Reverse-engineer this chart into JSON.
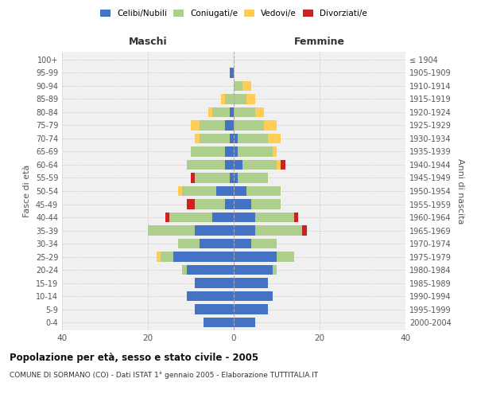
{
  "age_groups": [
    "0-4",
    "5-9",
    "10-14",
    "15-19",
    "20-24",
    "25-29",
    "30-34",
    "35-39",
    "40-44",
    "45-49",
    "50-54",
    "55-59",
    "60-64",
    "65-69",
    "70-74",
    "75-79",
    "80-84",
    "85-89",
    "90-94",
    "95-99",
    "100+"
  ],
  "birth_years": [
    "2000-2004",
    "1995-1999",
    "1990-1994",
    "1985-1989",
    "1980-1984",
    "1975-1979",
    "1970-1974",
    "1965-1969",
    "1960-1964",
    "1955-1959",
    "1950-1954",
    "1945-1949",
    "1940-1944",
    "1935-1939",
    "1930-1934",
    "1925-1929",
    "1920-1924",
    "1915-1919",
    "1910-1914",
    "1905-1909",
    "≤ 1904"
  ],
  "males": {
    "celibi": [
      7,
      9,
      11,
      9,
      11,
      14,
      8,
      9,
      5,
      2,
      4,
      1,
      2,
      2,
      1,
      2,
      1,
      0,
      0,
      1,
      0
    ],
    "coniugati": [
      0,
      0,
      0,
      0,
      1,
      3,
      5,
      11,
      10,
      7,
      8,
      8,
      9,
      8,
      7,
      6,
      4,
      2,
      0,
      0,
      0
    ],
    "vedovi": [
      0,
      0,
      0,
      0,
      0,
      1,
      0,
      0,
      0,
      0,
      1,
      0,
      0,
      0,
      1,
      2,
      1,
      1,
      0,
      0,
      0
    ],
    "divorziati": [
      0,
      0,
      0,
      0,
      0,
      0,
      0,
      0,
      1,
      2,
      0,
      1,
      0,
      0,
      0,
      0,
      0,
      0,
      0,
      0,
      0
    ]
  },
  "females": {
    "nubili": [
      5,
      8,
      9,
      8,
      9,
      10,
      4,
      5,
      5,
      4,
      3,
      1,
      2,
      1,
      1,
      0,
      0,
      0,
      0,
      0,
      0
    ],
    "coniugate": [
      0,
      0,
      0,
      0,
      1,
      4,
      6,
      11,
      9,
      7,
      8,
      7,
      8,
      8,
      7,
      7,
      5,
      3,
      2,
      0,
      0
    ],
    "vedove": [
      0,
      0,
      0,
      0,
      0,
      0,
      0,
      0,
      0,
      0,
      0,
      0,
      1,
      1,
      3,
      3,
      2,
      2,
      2,
      0,
      0
    ],
    "divorziate": [
      0,
      0,
      0,
      0,
      0,
      0,
      0,
      1,
      1,
      0,
      0,
      0,
      1,
      0,
      0,
      0,
      0,
      0,
      0,
      0,
      0
    ]
  },
  "colors": {
    "celibi": "#4472C4",
    "coniugati": "#AECF8B",
    "vedovi": "#FFCC55",
    "divorziati": "#CC2222"
  },
  "xlim": 40,
  "title": "Popolazione per età, sesso e stato civile - 2005",
  "subtitle": "COMUNE DI SORMANO (CO) - Dati ISTAT 1° gennaio 2005 - Elaborazione TUTTITALIA.IT",
  "ylabel": "Fasce di età",
  "ylabel_right": "Anni di nascita",
  "xlabel_left": "Maschi",
  "xlabel_right": "Femmine",
  "background_color": "#f0f0f0",
  "grid_color": "#cccccc"
}
